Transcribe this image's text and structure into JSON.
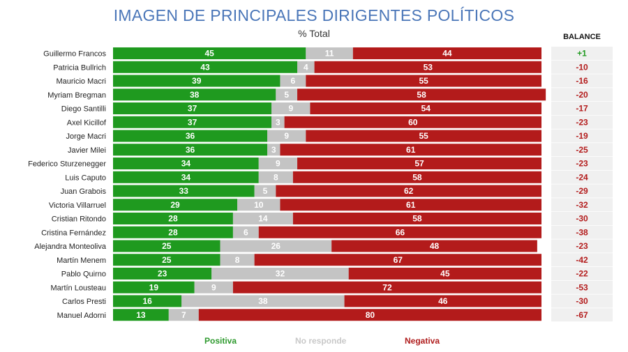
{
  "header": {
    "title": "IMAGEN DE PRINCIPALES DIRIGENTES POLÍTICOS",
    "subtitle": "% Total",
    "balance_label": "BALANCE"
  },
  "legend": {
    "positive": "Positiva",
    "no_response": "No responde",
    "negative": "Negativa"
  },
  "colors": {
    "positive": "#1f9a1f",
    "no_response": "#c4c4c4",
    "negative": "#b31b1b",
    "balance_bg": "#f0f0f0"
  },
  "chart_data": {
    "type": "bar",
    "stacked": true,
    "orientation": "horizontal",
    "title": "IMAGEN DE PRINCIPALES DIRIGENTES POLÍTICOS",
    "subtitle": "% Total",
    "xlim": [
      0,
      100
    ],
    "legend_position": "bottom",
    "categories": [
      "Guillermo Francos",
      "Patricia Bullrich",
      "Mauricio Macri",
      "Myriam Bregman",
      "Diego Santilli",
      "Axel Kicillof",
      "Jorge Macri",
      "Javier Milei",
      "Federico Sturzenegger",
      "Luis Caputo",
      "Juan Grabois",
      "Victoria Villarruel",
      "Cristian Ritondo",
      "Cristina Fernández",
      "Alejandra Monteoliva",
      "Martín Menem",
      "Pablo Quirno",
      "Martín Lousteau",
      "Carlos Presti",
      "Manuel Adorni"
    ],
    "series": [
      {
        "name": "Positiva",
        "values": [
          45,
          43,
          39,
          38,
          37,
          37,
          36,
          36,
          34,
          34,
          33,
          29,
          28,
          28,
          25,
          25,
          23,
          19,
          16,
          13
        ]
      },
      {
        "name": "No responde",
        "values": [
          11,
          4,
          6,
          5,
          9,
          3,
          9,
          3,
          9,
          8,
          5,
          10,
          14,
          6,
          26,
          8,
          32,
          9,
          38,
          7
        ]
      },
      {
        "name": "Negativa",
        "values": [
          44,
          53,
          55,
          58,
          54,
          60,
          55,
          61,
          57,
          58,
          62,
          61,
          58,
          66,
          48,
          67,
          45,
          72,
          46,
          80
        ]
      }
    ],
    "balance": [
      "+1",
      "-10",
      "-16",
      "-20",
      "-17",
      "-23",
      "-19",
      "-25",
      "-23",
      "-24",
      "-29",
      "-32",
      "-30",
      "-38",
      "-23",
      "-42",
      "-22",
      "-53",
      "-30",
      "-67"
    ]
  }
}
